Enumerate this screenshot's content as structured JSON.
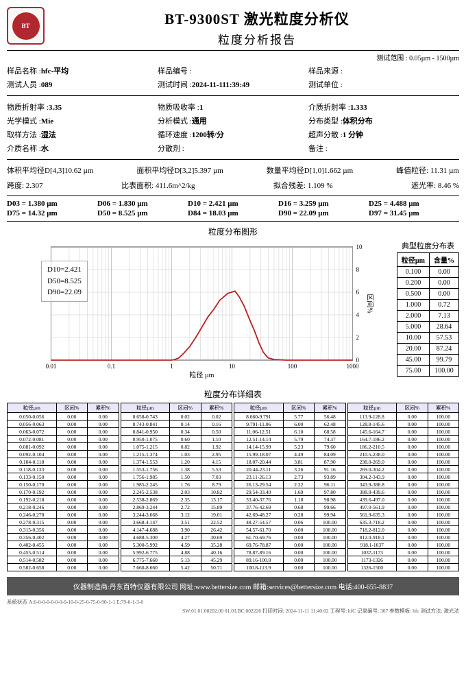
{
  "header": {
    "title": "BT-9300ST 激光粒度分析仪",
    "subtitle": "粒度分析报告",
    "range_label": "测试范围 : 0.05µm - 1500µm",
    "logo_text": "BT"
  },
  "meta_block1": [
    {
      "label": "样品名称 :",
      "value": "hfc-平均"
    },
    {
      "label": "样品编号 :",
      "value": ""
    },
    {
      "label": "样品来源 :",
      "value": ""
    },
    {
      "label": "测试人员 :",
      "value": "089"
    },
    {
      "label": "测试时间 :",
      "value": "2024-11-111:39:49"
    },
    {
      "label": "测试单位 :",
      "value": ""
    }
  ],
  "meta_block2": [
    {
      "label": "物质折射率 :",
      "value": "3.35"
    },
    {
      "label": "物质吸收率 :",
      "value": "1"
    },
    {
      "label": "介质折射率 :",
      "value": "1.333"
    },
    {
      "label": "光学模式 :",
      "value": "Mie"
    },
    {
      "label": "分析模式 :",
      "value": "通用"
    },
    {
      "label": "分布类型 :",
      "value": "体积分布"
    },
    {
      "label": "取样方法 :",
      "value": "湿法"
    },
    {
      "label": "循环速度 :",
      "value": "1200转/分"
    },
    {
      "label": "超声分散 :",
      "value": "1 分钟"
    },
    {
      "label": "介质名称 :",
      "value": "水"
    },
    {
      "label": "分散剂 :",
      "value": ""
    },
    {
      "label": "备注 :",
      "value": ""
    }
  ],
  "stats1": [
    {
      "t": "体积平均径D[4,3]10.62  µm"
    },
    {
      "t": "面积平均径D[3,2]5.397  µm"
    },
    {
      "t": "数量平均径D[1,0]1.662  µm"
    },
    {
      "t": "峰值粒径: 11.31  µm"
    }
  ],
  "stats2": [
    {
      "t": "跨度: 2.307"
    },
    {
      "t": "比表面积: 411.6m^2/kg"
    },
    {
      "t": "拟合残差: 1.109 %"
    },
    {
      "t": "遮光率: 8.46  %"
    }
  ],
  "d_row1": [
    "D03 = 1.380  µm",
    "D06 = 1.830  µm",
    "D10 = 2.421  µm",
    "D16 = 3.259  µm",
    "D25 = 4.488  µm"
  ],
  "d_row2": [
    "D75 = 14.32  µm",
    "D50 = 8.525  µm",
    "D84 = 18.03  µm",
    "D90 = 22.09  µm",
    "D97 = 31.45  µm"
  ],
  "chart": {
    "title": "粒度分布图形",
    "xlabel": "粒径 µm",
    "ylabel": "区间%",
    "annot": [
      "D10=2.421",
      "D50=8.525",
      "D90=22.09"
    ],
    "x_ticks": [
      "0.01",
      "0.1",
      "1",
      "10",
      "100",
      "1000"
    ],
    "y_ticks": [
      "0",
      "2",
      "4",
      "6",
      "8",
      "10"
    ],
    "line_color": "#b82020",
    "grid_color": "#bbbbbb",
    "points_logx": [
      [
        -2,
        0
      ],
      [
        0,
        0
      ],
      [
        0.05,
        0.05
      ],
      [
        0.12,
        0.2
      ],
      [
        0.2,
        0.6
      ],
      [
        0.3,
        1.2
      ],
      [
        0.4,
        2.0
      ],
      [
        0.5,
        2.9
      ],
      [
        0.6,
        3.8
      ],
      [
        0.7,
        4.5
      ],
      [
        0.8,
        5.3
      ],
      [
        0.93,
        5.9
      ],
      [
        1.05,
        6.1
      ],
      [
        1.12,
        5.6
      ],
      [
        1.2,
        4.8
      ],
      [
        1.3,
        3.5
      ],
      [
        1.38,
        2.5
      ],
      [
        1.45,
        1.5
      ],
      [
        1.52,
        0.7
      ],
      [
        1.6,
        0.2
      ],
      [
        1.7,
        0.05
      ],
      [
        1.9,
        0
      ],
      [
        3,
        0
      ]
    ]
  },
  "side_table": {
    "title": "典型粒度分布表",
    "headers": [
      "粒径µm",
      "含量%"
    ],
    "rows": [
      [
        "0.100",
        "0.00"
      ],
      [
        "0.200",
        "0.00"
      ],
      [
        "0.500",
        "0.00"
      ],
      [
        "1.000",
        "0.72"
      ],
      [
        "2.000",
        "7.13"
      ],
      [
        "5.000",
        "28.64"
      ],
      [
        "10.00",
        "57.53"
      ],
      [
        "20.00",
        "87.24"
      ],
      [
        "45.00",
        "99.79"
      ],
      [
        "75.00",
        "100.00"
      ]
    ]
  },
  "detail": {
    "title": "粒度分布详细表",
    "headers": [
      "粒径µm",
      "区间%",
      "累积%"
    ],
    "col1": [
      [
        "0.050-0.056",
        "0.00",
        "0.00"
      ],
      [
        "0.056-0.063",
        "0.00",
        "0.00"
      ],
      [
        "0.063-0.072",
        "0.00",
        "0.00"
      ],
      [
        "0.072-0.081",
        "0.00",
        "0.00"
      ],
      [
        "0.081-0.092",
        "0.00",
        "0.00"
      ],
      [
        "0.092-0.104",
        "0.00",
        "0.00"
      ],
      [
        "0.104-0.118",
        "0.00",
        "0.00"
      ],
      [
        "0.118-0.133",
        "0.00",
        "0.00"
      ],
      [
        "0.133-0.150",
        "0.00",
        "0.00"
      ],
      [
        "0.150-0.170",
        "0.00",
        "0.00"
      ],
      [
        "0.170-0.192",
        "0.00",
        "0.00"
      ],
      [
        "0.192-0.218",
        "0.00",
        "0.00"
      ],
      [
        "0.218-0.246",
        "0.00",
        "0.00"
      ],
      [
        "0.246-0.278",
        "0.00",
        "0.00"
      ],
      [
        "0.278-0.315",
        "0.00",
        "0.00"
      ],
      [
        "0.315-0.356",
        "0.00",
        "0.00"
      ],
      [
        "0.356-0.402",
        "0.00",
        "0.00"
      ],
      [
        "0.402-0.455",
        "0.00",
        "0.00"
      ],
      [
        "0.455-0.514",
        "0.00",
        "0.00"
      ],
      [
        "0.514-0.582",
        "0.00",
        "0.00"
      ],
      [
        "0.582-0.658",
        "0.00",
        "0.00"
      ]
    ],
    "col2": [
      [
        "0.658-0.743",
        "0.02",
        "0.02"
      ],
      [
        "0.743-0.841",
        "0.14",
        "0.16"
      ],
      [
        "0.841-0.950",
        "0.34",
        "0.50"
      ],
      [
        "0.950-1.075",
        "0.60",
        "1.10"
      ],
      [
        "1.075-1.215",
        "0.82",
        "1.92"
      ],
      [
        "1.215-1.374",
        "1.03",
        "2.95"
      ],
      [
        "1.374-1.553",
        "1.20",
        "4.15"
      ],
      [
        "1.553-1.756",
        "1.38",
        "5.53"
      ],
      [
        "1.756-1.985",
        "1.50",
        "7.03"
      ],
      [
        "1.985-2.245",
        "1.76",
        "8.79"
      ],
      [
        "2.245-2.538",
        "2.03",
        "10.82"
      ],
      [
        "2.538-2.869",
        "2.35",
        "13.17"
      ],
      [
        "2.869-3.244",
        "2.72",
        "15.89"
      ],
      [
        "3.244-3.668",
        "3.12",
        "19.01"
      ],
      [
        "3.668-4.147",
        "3.51",
        "22.52"
      ],
      [
        "4.147-4.688",
        "3.90",
        "26.42"
      ],
      [
        "4.688-5.300",
        "4.27",
        "30.69"
      ],
      [
        "5.300-5.992",
        "4.59",
        "35.28"
      ],
      [
        "5.992-6.775",
        "4.88",
        "40.16"
      ],
      [
        "6.775-7.660",
        "5.13",
        "45.29"
      ],
      [
        "7.660-8.660",
        "5.42",
        "50.71"
      ]
    ],
    "col3": [
      [
        "8.660-9.791",
        "5.77",
        "56.48"
      ],
      [
        "9.791-11.06",
        "6.00",
        "62.48"
      ],
      [
        "11.06-12.51",
        "6.10",
        "68.58"
      ],
      [
        "12.51-14.14",
        "5.79",
        "74.37"
      ],
      [
        "14.14-15.99",
        "5.23",
        "79.60"
      ],
      [
        "15.99-18.07",
        "4.49",
        "84.09"
      ],
      [
        "18.07-20.44",
        "3.81",
        "87.90"
      ],
      [
        "20.44-23.11",
        "3.26",
        "91.16"
      ],
      [
        "23.11-26.13",
        "2.73",
        "93.89"
      ],
      [
        "26.13-29.54",
        "2.22",
        "96.11"
      ],
      [
        "29.54-33.40",
        "1.69",
        "97.80"
      ],
      [
        "33.40-37.76",
        "1.18",
        "98.98"
      ],
      [
        "37.76-42.69",
        "0.68",
        "99.66"
      ],
      [
        "42.69-48.27",
        "0.28",
        "99.94"
      ],
      [
        "48.27-54.57",
        "0.06",
        "100.00"
      ],
      [
        "54.57-61.70",
        "0.00",
        "100.00"
      ],
      [
        "61.70-69.76",
        "0.00",
        "100.00"
      ],
      [
        "69.76-78.87",
        "0.00",
        "100.00"
      ],
      [
        "78.87-89.16",
        "0.00",
        "100.00"
      ],
      [
        "89.16-100.8",
        "0.00",
        "100.00"
      ],
      [
        "100.8-113.9",
        "0.00",
        "100.00"
      ]
    ],
    "col4": [
      [
        "113.9-128.8",
        "0.00",
        "100.00"
      ],
      [
        "128.8-145.6",
        "0.00",
        "100.00"
      ],
      [
        "145.6-164.7",
        "0.00",
        "100.00"
      ],
      [
        "164.7-186.2",
        "0.00",
        "100.00"
      ],
      [
        "186.2-210.5",
        "0.00",
        "100.00"
      ],
      [
        "210.5-238.0",
        "0.00",
        "100.00"
      ],
      [
        "238.0-269.0",
        "0.00",
        "100.00"
      ],
      [
        "269.0-304.2",
        "0.00",
        "100.00"
      ],
      [
        "304.2-343.9",
        "0.00",
        "100.00"
      ],
      [
        "343.9-388.8",
        "0.00",
        "100.00"
      ],
      [
        "388.8-439.6",
        "0.00",
        "100.00"
      ],
      [
        "439.6-497.0",
        "0.00",
        "100.00"
      ],
      [
        "497.0-561.9",
        "0.00",
        "100.00"
      ],
      [
        "561.9-635.3",
        "0.00",
        "100.00"
      ],
      [
        "635.3-718.2",
        "0.00",
        "100.00"
      ],
      [
        "718.2-812.0",
        "0.00",
        "100.00"
      ],
      [
        "812.0-918.1",
        "0.00",
        "100.00"
      ],
      [
        "918.1-1037",
        "0.00",
        "100.00"
      ],
      [
        "1037-1173",
        "0.00",
        "100.00"
      ],
      [
        "1173-1326",
        "0.00",
        "100.00"
      ],
      [
        "1326-1500",
        "0.00",
        "100.00"
      ]
    ]
  },
  "footer": {
    "bar": "仪器制造商:丹东百特仪器有限公司  网址:www.bettersize.com  邮箱:services@bettersize.com  电话:400-655-8837",
    "sys_left": "系统状态  A:0-0-0-0-0-0-0-0-10-0-25-0-75-0-90-1-1  E:79-0-1-3-0",
    "sys_right": "SW:01.01.08202.00  01.03.BC.002226  打印时间: 2024-11-11 11:40:02  工程号: hfC  记录编号: 307  参数模板: hfc  测试方法: 激光法"
  }
}
